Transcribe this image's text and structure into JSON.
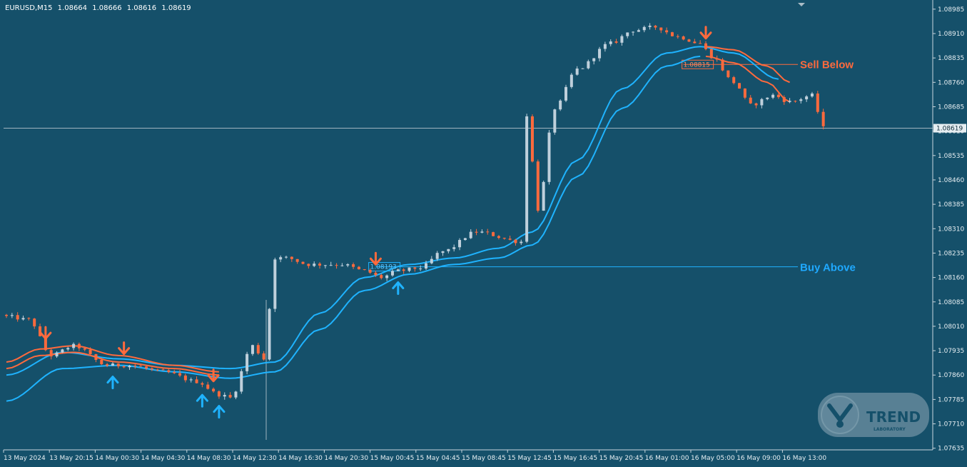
{
  "header": {
    "symbol": "EURUSD,M15",
    "open": "1.08664",
    "high": "1.08666",
    "low": "1.08616",
    "close": "1.08619"
  },
  "colors": {
    "background": "#15506a",
    "bull_candle": "#bfd0dc",
    "bear_candle": "#ff6a3d",
    "buy_line": "#1fb3ff",
    "sell_line": "#ff6a3d",
    "axis": "#c9d6dd"
  },
  "annotations": {
    "sell_label": "Sell Below",
    "buy_label": "Buy Above",
    "sell_level_label": "1.08815",
    "buy_level_label": "1.08193",
    "current_price_label": "1.08619"
  },
  "logo": {
    "word": "TREND",
    "sub": "LABORATORY"
  },
  "chart_data": {
    "type": "candlestick",
    "symbol": "EURUSD",
    "timeframe": "M15",
    "y_ticks": [
      "1.08985",
      "1.08910",
      "1.08835",
      "1.08760",
      "1.08685",
      "1.08610",
      "1.08535",
      "1.08460",
      "1.08385",
      "1.08310",
      "1.08235",
      "1.08160",
      "1.08085",
      "1.08010",
      "1.07935",
      "1.07860",
      "1.07785",
      "1.07710",
      "1.07635"
    ],
    "ylim": [
      1.0763,
      1.09
    ],
    "x_ticks": [
      "13 May 2024",
      "13 May 20:15",
      "14 May 00:30",
      "14 May 04:30",
      "14 May 08:30",
      "14 May 12:30",
      "14 May 16:30",
      "14 May 20:30",
      "15 May 00:45",
      "15 May 04:45",
      "15 May 08:45",
      "15 May 12:45",
      "15 May 16:45",
      "15 May 20:45",
      "16 May 01:00",
      "16 May 05:00",
      "16 May 09:00",
      "16 May 13:00"
    ],
    "candle_count": 147,
    "current_price": 1.08619,
    "buy_level": 1.08193,
    "sell_level": 1.08815,
    "close_anchors": [
      [
        0,
        1.0804
      ],
      [
        4,
        1.0803
      ],
      [
        8,
        1.0792
      ],
      [
        12,
        1.0795
      ],
      [
        18,
        1.0789
      ],
      [
        22,
        1.0789
      ],
      [
        28,
        1.0787
      ],
      [
        34,
        1.0784
      ],
      [
        38,
        1.078
      ],
      [
        40,
        1.0779
      ],
      [
        44,
        1.0795
      ],
      [
        46,
        1.0791
      ],
      [
        48,
        1.0822
      ],
      [
        50,
        1.0822
      ],
      [
        54,
        1.082
      ],
      [
        60,
        1.082
      ],
      [
        64,
        1.0818
      ],
      [
        67,
        1.0816
      ],
      [
        70,
        1.0818
      ],
      [
        74,
        1.0819
      ],
      [
        78,
        1.0824
      ],
      [
        84,
        1.083
      ],
      [
        92,
        1.0827
      ],
      [
        93,
        1.0866
      ],
      [
        95,
        1.0837
      ],
      [
        98,
        1.0868
      ],
      [
        102,
        1.088
      ],
      [
        108,
        1.0888
      ],
      [
        112,
        1.0892
      ],
      [
        116,
        1.0893
      ],
      [
        120,
        1.089
      ],
      [
        124,
        1.0888
      ],
      [
        126,
        1.0884
      ],
      [
        130,
        1.0876
      ],
      [
        133,
        1.0869
      ],
      [
        137,
        1.0872
      ],
      [
        140,
        1.087
      ],
      [
        144,
        1.0872
      ],
      [
        146,
        1.0862
      ]
    ],
    "buy_arrows": [
      19,
      35,
      38,
      70
    ],
    "sell_arrows": [
      7,
      21,
      37,
      66,
      125
    ],
    "upper_band_anchors": [
      [
        0,
        1.0786
      ],
      [
        10,
        1.0793
      ],
      [
        20,
        1.0791
      ],
      [
        30,
        1.0789
      ],
      [
        40,
        1.0788
      ],
      [
        48,
        1.079
      ],
      [
        56,
        1.0805
      ],
      [
        64,
        1.0816
      ],
      [
        72,
        1.082
      ],
      [
        80,
        1.0822
      ],
      [
        88,
        1.0825
      ],
      [
        94,
        1.083
      ],
      [
        102,
        1.0852
      ],
      [
        110,
        1.0874
      ],
      [
        118,
        1.0885
      ],
      [
        124,
        1.0887
      ],
      [
        130,
        1.0885
      ],
      [
        138,
        1.0877
      ]
    ],
    "lower_band_anchors": [
      [
        0,
        1.0778
      ],
      [
        10,
        1.0788
      ],
      [
        20,
        1.0789
      ],
      [
        30,
        1.0787
      ],
      [
        40,
        1.0785
      ],
      [
        48,
        1.0787
      ],
      [
        56,
        1.08
      ],
      [
        64,
        1.0812
      ],
      [
        72,
        1.0817
      ],
      [
        80,
        1.082
      ],
      [
        88,
        1.0822
      ],
      [
        94,
        1.0826
      ],
      [
        102,
        1.0847
      ],
      [
        110,
        1.0868
      ],
      [
        118,
        1.0881
      ],
      [
        124,
        1.0884
      ]
    ],
    "sell_band_upper_anchors": [
      [
        0,
        1.079
      ],
      [
        6,
        1.0794
      ],
      [
        12,
        1.0795
      ],
      [
        20,
        1.0792
      ],
      [
        30,
        1.0789
      ],
      [
        38,
        1.0787
      ]
    ],
    "sell_band_lower_anchors": [
      [
        0,
        1.0788
      ],
      [
        6,
        1.0792
      ],
      [
        12,
        1.0793
      ],
      [
        20,
        1.079
      ],
      [
        30,
        1.0788
      ],
      [
        38,
        1.0786
      ]
    ],
    "sell_band2_upper_anchors": [
      [
        125,
        1.0887
      ],
      [
        130,
        1.0886
      ],
      [
        136,
        1.0881
      ],
      [
        140,
        1.0876
      ]
    ],
    "sell_band2_lower_anchors": [
      [
        125,
        1.0884
      ],
      [
        130,
        1.0882
      ],
      [
        136,
        1.0876
      ],
      [
        140,
        1.087
      ]
    ]
  }
}
